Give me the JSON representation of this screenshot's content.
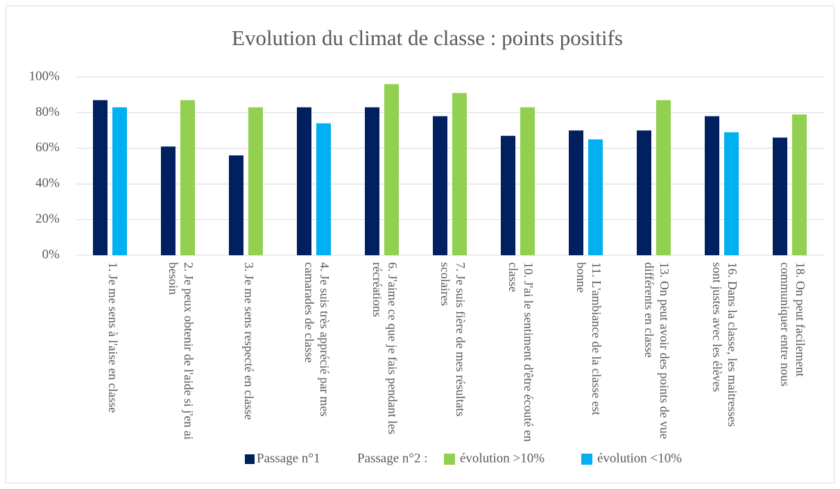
{
  "chart_data": {
    "type": "bar",
    "title": "Evolution du climat de classe : points positifs",
    "categories": [
      "1. Je me sens à l'aise en classe",
      "2. Je peux obtenir de l'aide si j'en ai besoin",
      "3. Je me sens respecté en classe",
      "4. Je suis très apprécié par mes camarades de classe",
      "6. J'aime ce que je fais pendant les récréations",
      "7. Je suis fière de mes résultats scolaires",
      "10. J'ai le sentiment d'être écouté en classe",
      "11. L'ambiance de la classe est bonne",
      "13. On peut avoir des points de vue différents en classe",
      "16. Dans la classe, les maitresses sont justes avec les élèves",
      "18. On peut facilement communiquer entre nous"
    ],
    "series": [
      {
        "name": "Passage n°1",
        "color": "#002060",
        "values": [
          87,
          61,
          56,
          83,
          83,
          78,
          67,
          70,
          70,
          78,
          66
        ]
      },
      {
        "name": "Passage n°2 :",
        "colors": [
          "#00b0f0",
          "#92d050",
          "#92d050",
          "#00b0f0",
          "#92d050",
          "#92d050",
          "#92d050",
          "#00b0f0",
          "#92d050",
          "#00b0f0",
          "#92d050"
        ],
        "values": [
          83,
          87,
          83,
          74,
          96,
          91,
          83,
          65,
          87,
          69,
          79
        ],
        "color_legend": [
          {
            "label": "évolution >10%",
            "color": "#92d050"
          },
          {
            "label": "évolution <10%",
            "color": "#00b0f0"
          }
        ]
      }
    ],
    "ylim": [
      0,
      100
    ],
    "yticks": [
      {
        "value": 0,
        "label": "0%"
      },
      {
        "value": 20,
        "label": "20%"
      },
      {
        "value": 40,
        "label": "40%"
      },
      {
        "value": 60,
        "label": "60%"
      },
      {
        "value": 80,
        "label": "80%"
      },
      {
        "value": 100,
        "label": "100%"
      }
    ],
    "grid": true
  }
}
